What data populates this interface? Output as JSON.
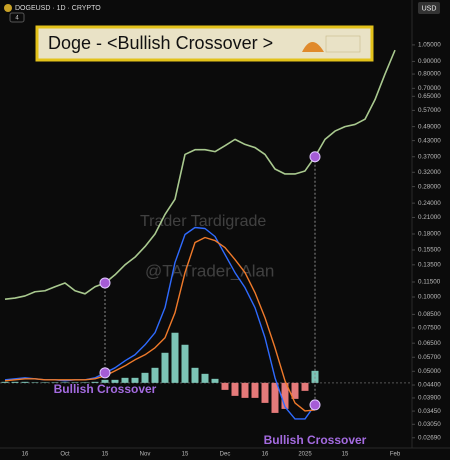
{
  "header": {
    "symbol": "DOGEUSD · 1D · CRYPTO",
    "indicator_count": "4",
    "currency": "USD"
  },
  "banner": {
    "title": "Doge - <Bullish Crossover >"
  },
  "watermark": [
    "Trader Tardigrade",
    "@TATrader_Alan"
  ],
  "chart_data": {
    "type": "line",
    "categories": [
      null,
      null,
      "16",
      null,
      null,
      null,
      "Oct",
      null,
      null,
      null,
      "15",
      null,
      null,
      null,
      "Nov",
      null,
      null,
      null,
      "15",
      null,
      null,
      null,
      "Dec",
      null,
      null,
      null,
      "16",
      null,
      null,
      null,
      "2025",
      null,
      null,
      null,
      "15",
      null,
      null,
      null,
      null,
      "Feb"
    ],
    "series": [
      {
        "color": "#a9c98f",
        "values": [
          0.098,
          0.099,
          0.101,
          0.105,
          0.106,
          0.11,
          0.114,
          0.106,
          0.103,
          0.11,
          0.114,
          0.123,
          0.135,
          0.145,
          0.16,
          0.18,
          0.216,
          0.249,
          0.378,
          0.395,
          0.395,
          0.388,
          0.41,
          0.435,
          0.415,
          0.403,
          0.378,
          0.33,
          0.315,
          0.315,
          0.324,
          0.37,
          0.435,
          0.47,
          0.49,
          0.5,
          0.525,
          0.63,
          0.8,
          1.0
        ]
      }
    ],
    "yscale": "log",
    "ylim": [
      0.024,
      1.3
    ],
    "yticks": [
      {
        "value": 1.05,
        "label": "1.05000"
      },
      {
        "value": 0.9,
        "label": "0.90000"
      },
      {
        "value": 0.8,
        "label": "0.80000"
      },
      {
        "value": 0.7,
        "label": "0.70000"
      },
      {
        "value": 0.65,
        "label": "0.65000"
      },
      {
        "value": 0.57,
        "label": "0.57000"
      },
      {
        "value": 0.49,
        "label": "0.49000"
      },
      {
        "value": 0.43,
        "label": "0.43000"
      },
      {
        "value": 0.37,
        "label": "0.37000"
      },
      {
        "value": 0.32,
        "label": "0.32000"
      },
      {
        "value": 0.28,
        "label": "0.28000"
      },
      {
        "value": 0.24,
        "label": "0.24000"
      },
      {
        "value": 0.21,
        "label": "0.21000"
      },
      {
        "value": 0.18,
        "label": "0.18000"
      },
      {
        "value": 0.155,
        "label": "0.15500"
      },
      {
        "value": 0.135,
        "label": "0.13500"
      },
      {
        "value": 0.115,
        "label": "0.11500"
      },
      {
        "value": 0.1,
        "label": "0.10000"
      },
      {
        "value": 0.085,
        "label": "0.08500"
      },
      {
        "value": 0.075,
        "label": "0.07500"
      },
      {
        "value": 0.065,
        "label": "0.06500"
      },
      {
        "value": 0.057,
        "label": "0.05700"
      },
      {
        "value": 0.05,
        "label": "0.05000"
      },
      {
        "value": 0.044,
        "label": "0.04400"
      },
      {
        "value": 0.039,
        "label": "0.03900"
      },
      {
        "value": 0.0345,
        "label": "0.03450"
      },
      {
        "value": 0.0305,
        "label": "0.03050"
      },
      {
        "value": 0.0269,
        "label": "0.02690"
      }
    ],
    "indicator": {
      "ylim": [
        -6.7,
        17
      ],
      "macd": {
        "color": "#2f6bff",
        "values": [
          0.3,
          0.4,
          0.5,
          0.4,
          0.3,
          0.3,
          0.2,
          0.3,
          0.3,
          0.5,
          1.0,
          1.5,
          2.2,
          2.8,
          3.8,
          5.0,
          7.5,
          12.0,
          14.8,
          15.5,
          15.4,
          14.6,
          12.8,
          11.0,
          9.5,
          7.5,
          4.5,
          0.5,
          -2.4,
          -3.6,
          -3.6,
          -2.2,
          null,
          null,
          null,
          null,
          null,
          null,
          null,
          null
        ]
      },
      "signal": {
        "color": "#f07a2a",
        "values": [
          0.2,
          0.3,
          0.4,
          0.4,
          0.3,
          0.3,
          0.3,
          0.3,
          0.3,
          0.4,
          0.7,
          1.2,
          1.7,
          2.3,
          2.8,
          3.5,
          4.5,
          7.0,
          11.0,
          14.0,
          14.5,
          14.2,
          13.5,
          12.3,
          11.0,
          9.0,
          6.5,
          3.5,
          0.2,
          -2.0,
          -2.8,
          -2.7,
          null,
          null,
          null,
          null,
          null,
          null,
          null,
          null
        ]
      },
      "histogram": {
        "positive_color": "#7cc4b6",
        "negative_color": "#e57a7a",
        "values": [
          0.1,
          0.1,
          0.1,
          0.05,
          0.05,
          0.05,
          0.05,
          0.05,
          0.05,
          0.1,
          0.3,
          0.3,
          0.5,
          0.5,
          1.0,
          1.5,
          3.0,
          5.0,
          3.8,
          1.5,
          0.9,
          0.4,
          -0.7,
          -1.3,
          -1.5,
          -1.5,
          -2.0,
          -3.0,
          -2.6,
          -1.6,
          -0.8,
          1.2,
          null,
          null,
          null,
          null,
          null,
          null,
          null,
          null
        ]
      }
    },
    "annotations": [
      {
        "text": "Bullish Crossover",
        "index": 10
      },
      {
        "text": "Bullish Crossover",
        "index": 31
      }
    ]
  }
}
